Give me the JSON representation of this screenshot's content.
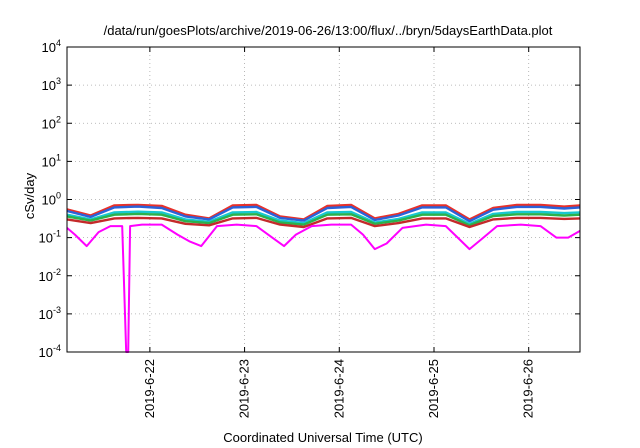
{
  "chart_data": {
    "type": "line",
    "title": "/data/run/goesPlots/archive/2019-06-26/13:00/flux/../bryn/5daysEarthData.plot",
    "xlabel": "Coordinated Universal Time (UTC)",
    "ylabel": "cSv/day",
    "yscale": "log",
    "ylim": [
      0.0001,
      10000
    ],
    "xlim": [
      "2019-06-21T03:00",
      "2019-06-26T13:00"
    ],
    "grid": true,
    "yticks": [
      {
        "base": "10",
        "exp": "4",
        "value": 10000
      },
      {
        "base": "10",
        "exp": "3",
        "value": 1000
      },
      {
        "base": "10",
        "exp": "2",
        "value": 100
      },
      {
        "base": "10",
        "exp": "1",
        "value": 10
      },
      {
        "base": "10",
        "exp": "0",
        "value": 1
      },
      {
        "base": "10",
        "exp": "-1",
        "value": 0.1
      },
      {
        "base": "10",
        "exp": "-2",
        "value": 0.01
      },
      {
        "base": "10",
        "exp": "-3",
        "value": 0.001
      },
      {
        "base": "10",
        "exp": "-4",
        "value": 0.0001
      }
    ],
    "xticks": [
      {
        "label": "2019-6-22",
        "value": "2019-06-22T00:00"
      },
      {
        "label": "2019-6-23",
        "value": "2019-06-23T00:00"
      },
      {
        "label": "2019-6-24",
        "value": "2019-06-24T00:00"
      },
      {
        "label": "2019-6-25",
        "value": "2019-06-25T00:00"
      },
      {
        "label": "2019-6-26",
        "value": "2019-06-26T00:00"
      }
    ],
    "series": [
      {
        "color": "#e8302a",
        "x": [
          "2019-06-21T03:00",
          "2019-06-21T09:00",
          "2019-06-21T15:00",
          "2019-06-21T21:00",
          "2019-06-22T03:00",
          "2019-06-22T09:00",
          "2019-06-22T15:00",
          "2019-06-22T21:00",
          "2019-06-23T03:00",
          "2019-06-23T09:00",
          "2019-06-23T15:00",
          "2019-06-23T21:00",
          "2019-06-24T03:00",
          "2019-06-24T09:00",
          "2019-06-24T15:00",
          "2019-06-24T21:00",
          "2019-06-25T03:00",
          "2019-06-25T09:00",
          "2019-06-25T15:00",
          "2019-06-25T21:00",
          "2019-06-26T03:00",
          "2019-06-26T09:00",
          "2019-06-26T13:00"
        ],
        "y": [
          0.55,
          0.38,
          0.7,
          0.72,
          0.68,
          0.4,
          0.32,
          0.7,
          0.72,
          0.36,
          0.3,
          0.68,
          0.72,
          0.32,
          0.42,
          0.7,
          0.7,
          0.3,
          0.6,
          0.72,
          0.72,
          0.65,
          0.7
        ]
      },
      {
        "color": "#2b62d9",
        "x": [
          "2019-06-21T03:00",
          "2019-06-21T09:00",
          "2019-06-21T15:00",
          "2019-06-21T21:00",
          "2019-06-22T03:00",
          "2019-06-22T09:00",
          "2019-06-22T15:00",
          "2019-06-22T21:00",
          "2019-06-23T03:00",
          "2019-06-23T09:00",
          "2019-06-23T15:00",
          "2019-06-23T21:00",
          "2019-06-24T03:00",
          "2019-06-24T09:00",
          "2019-06-24T15:00",
          "2019-06-24T21:00",
          "2019-06-25T03:00",
          "2019-06-25T09:00",
          "2019-06-25T15:00",
          "2019-06-25T21:00",
          "2019-06-26T03:00",
          "2019-06-26T09:00",
          "2019-06-26T13:00"
        ],
        "y": [
          0.5,
          0.35,
          0.62,
          0.65,
          0.6,
          0.36,
          0.3,
          0.62,
          0.64,
          0.33,
          0.28,
          0.6,
          0.64,
          0.29,
          0.38,
          0.62,
          0.62,
          0.27,
          0.54,
          0.64,
          0.64,
          0.58,
          0.62
        ]
      },
      {
        "color": "#18c8d0",
        "x": [
          "2019-06-21T03:00",
          "2019-06-21T09:00",
          "2019-06-21T15:00",
          "2019-06-21T21:00",
          "2019-06-22T03:00",
          "2019-06-22T09:00",
          "2019-06-22T15:00",
          "2019-06-22T21:00",
          "2019-06-23T03:00",
          "2019-06-23T09:00",
          "2019-06-23T15:00",
          "2019-06-23T21:00",
          "2019-06-24T03:00",
          "2019-06-24T09:00",
          "2019-06-24T15:00",
          "2019-06-24T21:00",
          "2019-06-25T03:00",
          "2019-06-25T09:00",
          "2019-06-25T15:00",
          "2019-06-25T21:00",
          "2019-06-26T03:00",
          "2019-06-26T09:00",
          "2019-06-26T13:00"
        ],
        "y": [
          0.4,
          0.3,
          0.46,
          0.48,
          0.46,
          0.3,
          0.26,
          0.46,
          0.47,
          0.28,
          0.24,
          0.46,
          0.47,
          0.25,
          0.31,
          0.46,
          0.46,
          0.23,
          0.42,
          0.47,
          0.47,
          0.44,
          0.46
        ]
      },
      {
        "color": "#2bb24c",
        "x": [
          "2019-06-21T03:00",
          "2019-06-21T09:00",
          "2019-06-21T15:00",
          "2019-06-21T21:00",
          "2019-06-22T03:00",
          "2019-06-22T09:00",
          "2019-06-22T15:00",
          "2019-06-22T21:00",
          "2019-06-23T03:00",
          "2019-06-23T09:00",
          "2019-06-23T15:00",
          "2019-06-23T21:00",
          "2019-06-24T03:00",
          "2019-06-24T09:00",
          "2019-06-24T15:00",
          "2019-06-24T21:00",
          "2019-06-25T03:00",
          "2019-06-25T09:00",
          "2019-06-25T15:00",
          "2019-06-25T21:00",
          "2019-06-26T03:00",
          "2019-06-26T09:00",
          "2019-06-26T13:00"
        ],
        "y": [
          0.36,
          0.28,
          0.4,
          0.42,
          0.4,
          0.27,
          0.24,
          0.4,
          0.41,
          0.25,
          0.22,
          0.4,
          0.41,
          0.23,
          0.28,
          0.4,
          0.4,
          0.21,
          0.37,
          0.41,
          0.41,
          0.38,
          0.4
        ]
      },
      {
        "color": "#c42a2a",
        "x": [
          "2019-06-21T03:00",
          "2019-06-21T09:00",
          "2019-06-21T15:00",
          "2019-06-21T21:00",
          "2019-06-22T03:00",
          "2019-06-22T09:00",
          "2019-06-22T15:00",
          "2019-06-22T21:00",
          "2019-06-23T03:00",
          "2019-06-23T09:00",
          "2019-06-23T15:00",
          "2019-06-23T21:00",
          "2019-06-24T03:00",
          "2019-06-24T09:00",
          "2019-06-24T15:00",
          "2019-06-24T21:00",
          "2019-06-25T03:00",
          "2019-06-25T09:00",
          "2019-06-25T15:00",
          "2019-06-25T21:00",
          "2019-06-26T03:00",
          "2019-06-26T09:00",
          "2019-06-26T13:00"
        ],
        "y": [
          0.3,
          0.24,
          0.32,
          0.33,
          0.32,
          0.23,
          0.21,
          0.32,
          0.33,
          0.22,
          0.19,
          0.32,
          0.33,
          0.2,
          0.24,
          0.32,
          0.32,
          0.19,
          0.3,
          0.33,
          0.33,
          0.31,
          0.32
        ]
      },
      {
        "color": "#ff00ff",
        "x": [
          "2019-06-21T03:00",
          "2019-06-21T05:00",
          "2019-06-21T08:00",
          "2019-06-21T11:00",
          "2019-06-21T14:00",
          "2019-06-21T17:00",
          "2019-06-21T18:00",
          "2019-06-21T18:30",
          "2019-06-21T19:00",
          "2019-06-21T22:00",
          "2019-06-22T03:00",
          "2019-06-22T07:00",
          "2019-06-22T10:00",
          "2019-06-22T13:00",
          "2019-06-22T17:00",
          "2019-06-22T22:00",
          "2019-06-23T03:00",
          "2019-06-23T07:00",
          "2019-06-23T10:00",
          "2019-06-23T13:00",
          "2019-06-23T17:00",
          "2019-06-23T22:00",
          "2019-06-24T03:00",
          "2019-06-24T06:00",
          "2019-06-24T09:00",
          "2019-06-24T12:00",
          "2019-06-24T16:00",
          "2019-06-24T22:00",
          "2019-06-25T03:00",
          "2019-06-25T06:00",
          "2019-06-25T09:00",
          "2019-06-25T12:00",
          "2019-06-25T16:00",
          "2019-06-25T22:00",
          "2019-06-26T03:00",
          "2019-06-26T07:00",
          "2019-06-26T10:00",
          "2019-06-26T13:00"
        ],
        "y": [
          0.18,
          0.12,
          0.06,
          0.14,
          0.2,
          0.2,
          0.0001,
          0.0001,
          0.2,
          0.22,
          0.22,
          0.12,
          0.08,
          0.06,
          0.2,
          0.22,
          0.2,
          0.1,
          0.06,
          0.12,
          0.2,
          0.22,
          0.22,
          0.12,
          0.05,
          0.07,
          0.18,
          0.22,
          0.2,
          0.1,
          0.05,
          0.09,
          0.2,
          0.22,
          0.2,
          0.1,
          0.1,
          0.15
        ]
      }
    ]
  }
}
